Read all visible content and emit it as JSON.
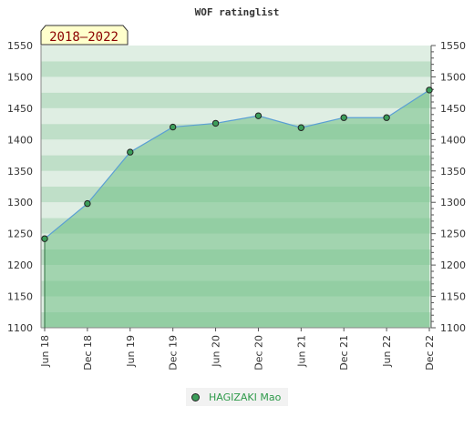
{
  "chart_data": {
    "type": "area",
    "title": "WOF ratinglist",
    "badge": "2018–2022",
    "categories": [
      "Jun 18",
      "Dec 18",
      "Jun 19",
      "Dec 19",
      "Jun 20",
      "Dec 20",
      "Jun 21",
      "Dec 21",
      "Jun 22",
      "Dec 22"
    ],
    "series": [
      {
        "name": "HAGIZAKI Mao",
        "values": [
          1242,
          1298,
          1380,
          1420,
          1426,
          1438,
          1419,
          1435,
          1435,
          1479
        ]
      }
    ],
    "ylim": [
      1100,
      1550
    ],
    "yticks": [
      1100,
      1150,
      1200,
      1250,
      1300,
      1350,
      1400,
      1450,
      1500,
      1550
    ],
    "xlabel": "",
    "ylabel": "",
    "grid": true,
    "legend_position": "bottom",
    "colors": {
      "line": "#5a9fd4",
      "marker": "#3c9e5a",
      "fill": "#6fbf85",
      "band_light": "#dfeee3",
      "band_dark": "#bfdfc8",
      "badge_bg": "#ffffcc"
    }
  }
}
